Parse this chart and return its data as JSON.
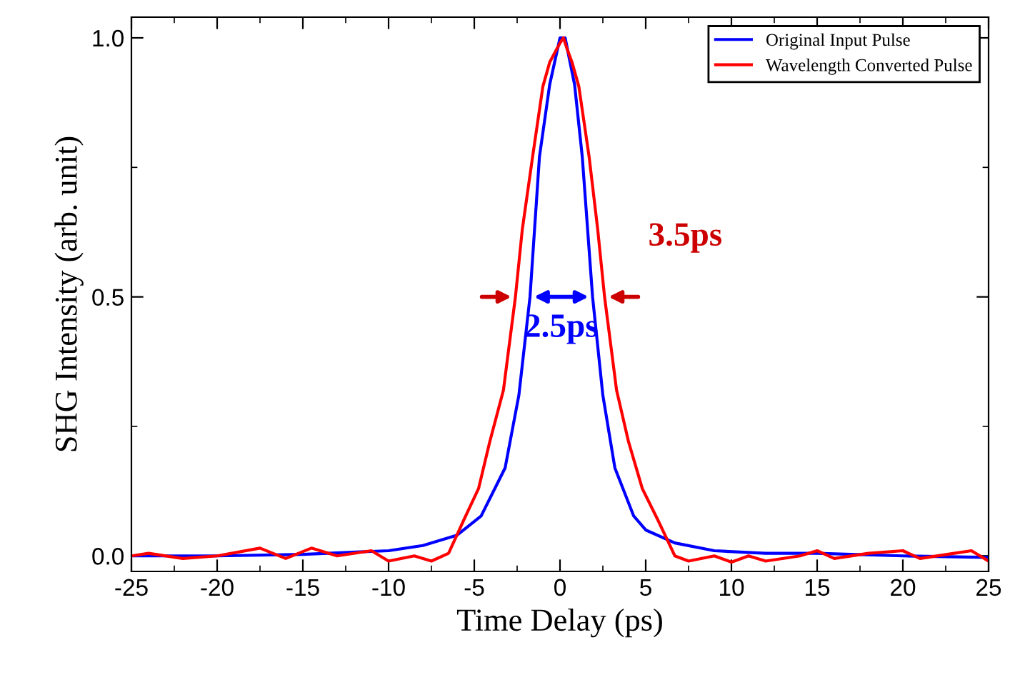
{
  "chart_data": {
    "type": "line",
    "xlabel": "Time Delay (ps)",
    "ylabel": "SHG Intensity (arb. unit)",
    "xlim": [
      -25,
      25
    ],
    "ylim": [
      -0.03,
      1.04
    ],
    "xticks": [
      -25,
      -20,
      -15,
      -10,
      -5,
      0,
      5,
      10,
      15,
      20,
      25
    ],
    "yticks": [
      {
        "value": 0,
        "label": "0.0"
      },
      {
        "value": 0.5,
        "label": "0.5"
      },
      {
        "value": 1,
        "label": "1.0"
      }
    ],
    "legend": "top right",
    "grid": false,
    "marker": "none",
    "line_style": "solid",
    "series": [
      {
        "name": "Original Input Pulse",
        "color": "#0000ff",
        "x": [
          -25,
          -20,
          -15,
          -10,
          -8,
          -6,
          -4.6,
          -3.2,
          -2.4,
          -1.75,
          -1.2,
          -0.6,
          0,
          0.3,
          0.85,
          1.3,
          1.9,
          2.5,
          3.2,
          4.3,
          5,
          6.7,
          9,
          12,
          15,
          20,
          25
        ],
        "values": [
          0,
          0,
          0.003,
          0.01,
          0.02,
          0.04,
          0.077,
          0.17,
          0.31,
          0.5,
          0.77,
          0.91,
          1.0,
          1.0,
          0.91,
          0.77,
          0.5,
          0.31,
          0.17,
          0.077,
          0.05,
          0.025,
          0.01,
          0.005,
          0.005,
          0,
          -0.003
        ]
      },
      {
        "name": "Wavelength Converted Pulse",
        "color": "#ff0000",
        "x": [
          -25,
          -24,
          -22,
          -20,
          -17.5,
          -16,
          -14.5,
          -13,
          -11,
          -10,
          -8.5,
          -7.5,
          -6.5,
          -5.6,
          -4.75,
          -4.1,
          -3.3,
          -2.6,
          -2.2,
          -1.6,
          -1.0,
          -0.6,
          0,
          0.2,
          0.4,
          0.7,
          1.1,
          1.7,
          2.2,
          2.6,
          3.3,
          4.0,
          4.8,
          5.7,
          6.7,
          7.5,
          9,
          10,
          11,
          12,
          14,
          15,
          16,
          18,
          20,
          21,
          23,
          24,
          25
        ],
        "values": [
          0,
          0.005,
          -0.005,
          0,
          0.015,
          -0.005,
          0.015,
          0,
          0.01,
          -0.01,
          0,
          -0.01,
          0.005,
          0.07,
          0.13,
          0.22,
          0.32,
          0.5,
          0.63,
          0.77,
          0.906,
          0.953,
          0.99,
          1.0,
          0.98,
          0.953,
          0.906,
          0.77,
          0.63,
          0.5,
          0.32,
          0.22,
          0.13,
          0.07,
          0,
          -0.01,
          0,
          -0.012,
          0,
          -0.01,
          0,
          0.01,
          -0.005,
          0.005,
          0.01,
          -0.005,
          0.005,
          0.01,
          -0.01
        ]
      }
    ],
    "annotations": [
      "2.5ps",
      "3.5ps"
    ]
  }
}
